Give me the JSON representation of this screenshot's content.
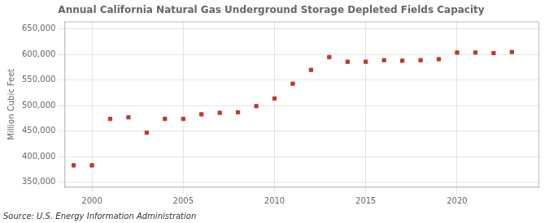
{
  "chart_data": {
    "type": "scatter",
    "title": "Annual California Natural Gas Underground Storage Depleted Fields Capacity",
    "ylabel": "Million Cubic Feet",
    "annotation": "Source: U.S. Energy Information Administration",
    "x": [
      1999,
      2000,
      2001,
      2002,
      2003,
      2004,
      2005,
      2006,
      2007,
      2008,
      2009,
      2010,
      2011,
      2012,
      2013,
      2014,
      2015,
      2016,
      2017,
      2018,
      2019,
      2020,
      2021,
      2022,
      2023
    ],
    "values": [
      383000,
      383000,
      474000,
      477000,
      447000,
      474000,
      474000,
      483000,
      486000,
      487000,
      499000,
      514000,
      543000,
      570000,
      595000,
      586000,
      586000,
      589000,
      588000,
      589000,
      591000,
      604000,
      604000,
      603000,
      605000
    ],
    "color": "#c0392b",
    "marker": "square",
    "xlim": [
      1998.5,
      2024.5
    ],
    "xticks": [
      2000,
      2005,
      2010,
      2015,
      2020
    ],
    "ylim": [
      340000,
      665000
    ],
    "yticks": [
      {
        "value": 350000,
        "label": "350,000"
      },
      {
        "value": 400000,
        "label": "400,000"
      },
      {
        "value": 450000,
        "label": "450,000"
      },
      {
        "value": 500000,
        "label": "500,000"
      },
      {
        "value": 550000,
        "label": "550,000"
      },
      {
        "value": 600000,
        "label": "600,000"
      },
      {
        "value": 650000,
        "label": "650,000"
      }
    ],
    "grid": true
  }
}
